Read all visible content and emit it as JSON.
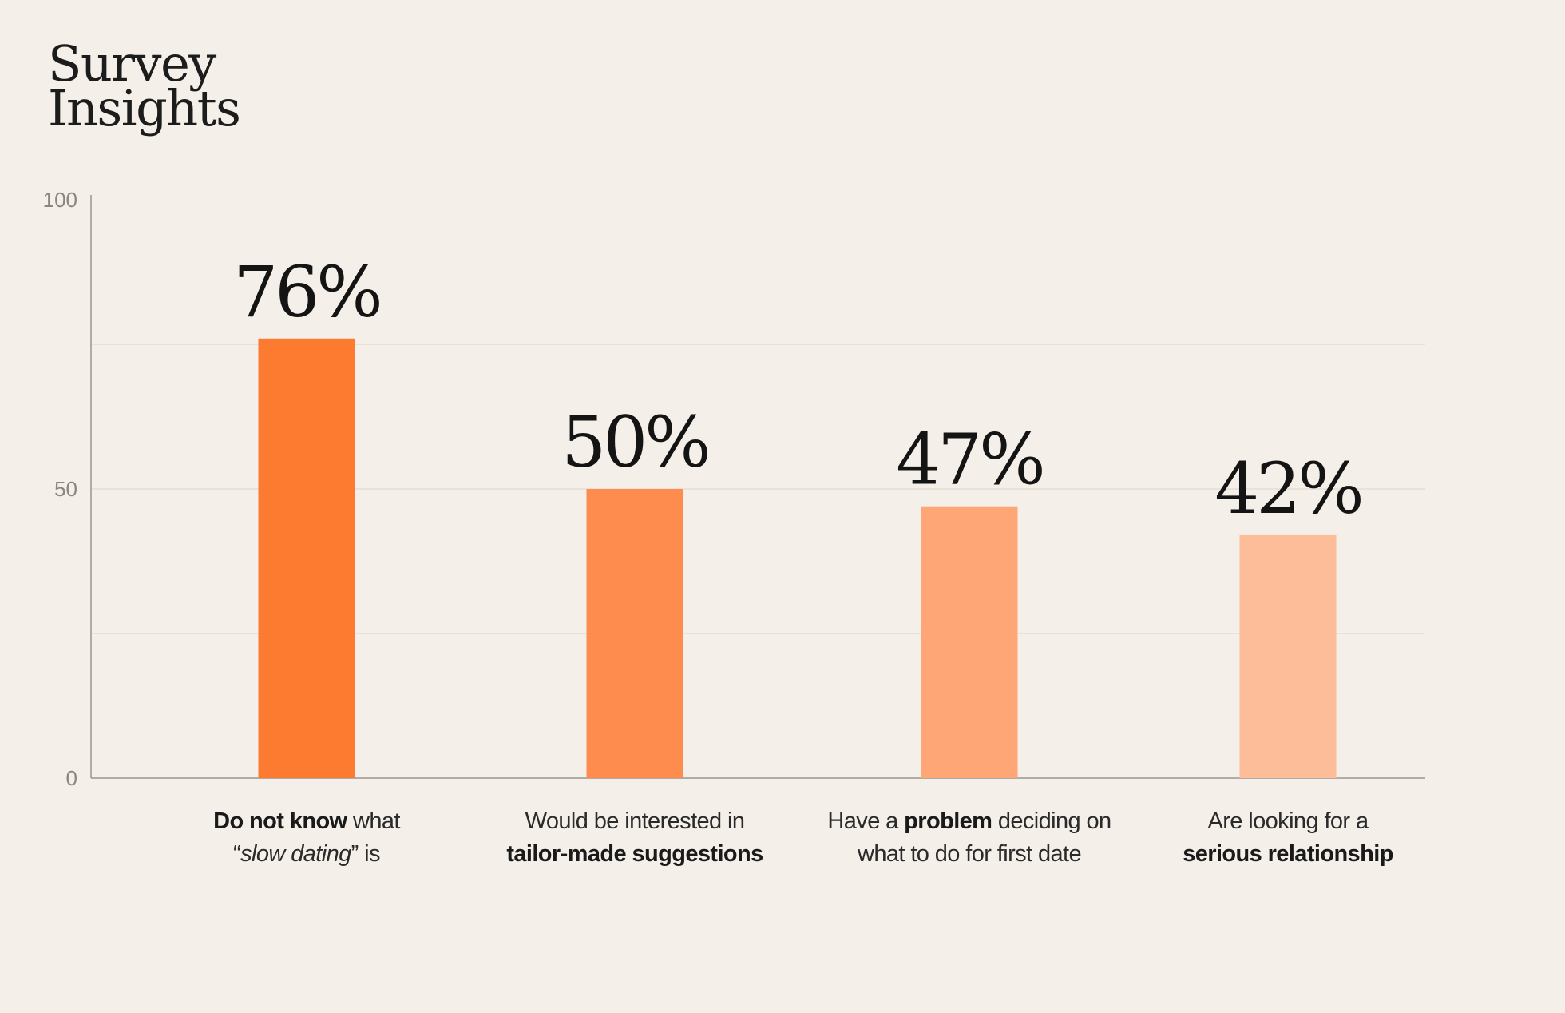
{
  "title_lines": [
    "Survey",
    "Insights"
  ],
  "chart_data": {
    "type": "bar",
    "title": "Survey Insights",
    "categories": [
      "Do not know what “slow dating” is",
      "Would be interested in tailor-made suggestions",
      "Have a problem deciding on what to do for first date",
      "Are looking for a serious relationship"
    ],
    "values": [
      76,
      50,
      47,
      42
    ],
    "value_labels": [
      "76%",
      "50%",
      "47%",
      "42%"
    ],
    "ylim": [
      0,
      100
    ],
    "yticks": [
      "0",
      "50",
      "100"
    ],
    "colors": [
      "#fd7a31",
      "#ff8c4f",
      "#ffa676",
      "#fdbd98"
    ],
    "grid": true,
    "category_label_parts": [
      [
        [
          {
            "t": "Do not know",
            "s": "b"
          },
          {
            "t": " what",
            "s": ""
          }
        ],
        [
          {
            "t": "“",
            "s": ""
          },
          {
            "t": "slow dating",
            "s": "i"
          },
          {
            "t": "” is",
            "s": ""
          }
        ]
      ],
      [
        [
          {
            "t": "Would be interested in",
            "s": ""
          }
        ],
        [
          {
            "t": "tailor-made suggestions",
            "s": "b"
          }
        ]
      ],
      [
        [
          {
            "t": "Have a ",
            "s": ""
          },
          {
            "t": "problem",
            "s": "b"
          },
          {
            "t": " deciding on",
            "s": ""
          }
        ],
        [
          {
            "t": "what to do for first date",
            "s": ""
          }
        ]
      ],
      [
        [
          {
            "t": "Are looking for a",
            "s": ""
          }
        ],
        [
          {
            "t": "serious relationship",
            "s": "b"
          }
        ]
      ]
    ]
  }
}
